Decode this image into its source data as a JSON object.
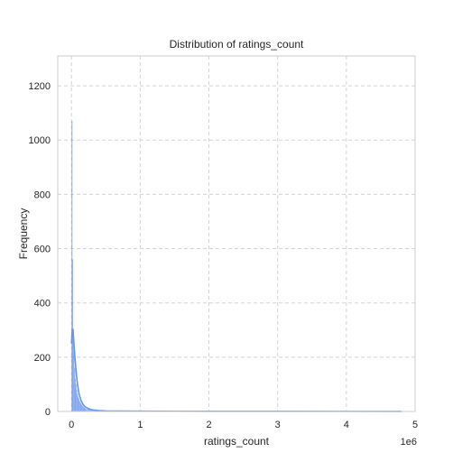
{
  "chart_data": {
    "type": "bar",
    "title": "Distribution of ratings_count",
    "xlabel": "ratings_count",
    "ylabel": "Frequency",
    "x_offset_label": "1e6",
    "xlim": [
      -200000,
      5000000
    ],
    "ylim": [
      0,
      1310
    ],
    "x_ticks": [
      0,
      1000000,
      2000000,
      3000000,
      4000000,
      5000000
    ],
    "x_tick_labels": [
      "0",
      "1",
      "2",
      "3",
      "4",
      "5"
    ],
    "y_ticks": [
      0,
      200,
      400,
      600,
      800,
      1000,
      1200
    ],
    "y_tick_labels": [
      "0",
      "200",
      "400",
      "600",
      "800",
      "1000",
      "1200"
    ],
    "grid": true,
    "grid_style": "dashed",
    "bar_color": "#6495ed",
    "kde_color": "#6495ed",
    "bin_width": 10000,
    "histogram": {
      "bin_starts": [
        0,
        10000,
        20000,
        30000,
        40000,
        50000,
        60000,
        70000,
        80000,
        90000,
        100000,
        110000,
        120000,
        130000,
        140000,
        150000,
        160000,
        170000,
        180000,
        190000,
        200000,
        220000,
        240000,
        260000,
        280000,
        300000,
        350000,
        400000,
        500000,
        600000,
        800000,
        1000000
      ],
      "values": [
        1070,
        560,
        300,
        220,
        160,
        120,
        100,
        80,
        65,
        55,
        48,
        40,
        34,
        30,
        25,
        22,
        19,
        16,
        14,
        12,
        10,
        8,
        7,
        6,
        5,
        4,
        3,
        3,
        2,
        2,
        1,
        1
      ]
    },
    "kde": {
      "x": [
        0,
        10000,
        20000,
        30000,
        50000,
        70000,
        90000,
        110000,
        140000,
        170000,
        200000,
        250000,
        300000,
        400000,
        500000,
        700000,
        1000000,
        1500000,
        2000000,
        3000000,
        4000000,
        4800000
      ],
      "y": [
        250,
        295,
        305,
        270,
        200,
        140,
        95,
        65,
        40,
        25,
        17,
        10,
        6,
        3,
        2,
        1.5,
        1,
        0.8,
        0.6,
        0.5,
        0.4,
        0.3
      ]
    }
  }
}
